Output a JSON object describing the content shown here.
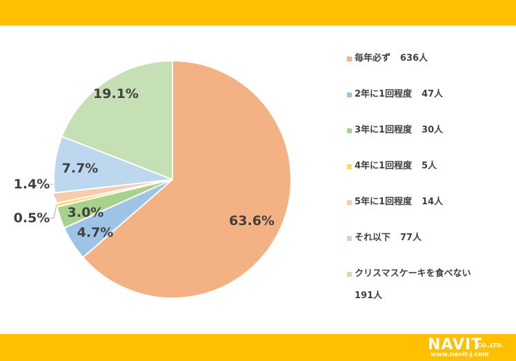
{
  "chart_data": {
    "type": "pie",
    "categories": [
      "毎年必ず",
      "2年に1回程度",
      "3年に1回程度",
      "4年に1回程度",
      "5年に1回程度",
      "それ以下",
      "クリスマスケーキを食べない"
    ],
    "counts": [
      "636人",
      "47人",
      "30人",
      "5人",
      "14人",
      "77人",
      "191人"
    ],
    "values": [
      63.6,
      4.7,
      3.0,
      0.5,
      1.4,
      7.7,
      19.1
    ],
    "labels": [
      "63.6%",
      "4.7%",
      "3.0%",
      "0.5%",
      "1.4%",
      "7.7%",
      "19.1%"
    ],
    "colors": [
      "#F4B183",
      "#9DC3E6",
      "#A9D18E",
      "#FFD966",
      "#F8CBAD",
      "#BDD7EE",
      "#C5E0B4"
    ],
    "legend_position": "right"
  },
  "logo": {
    "name": "NAVIT",
    "suffix": "CO.,LTD.",
    "url": "www.navit-j.com"
  }
}
